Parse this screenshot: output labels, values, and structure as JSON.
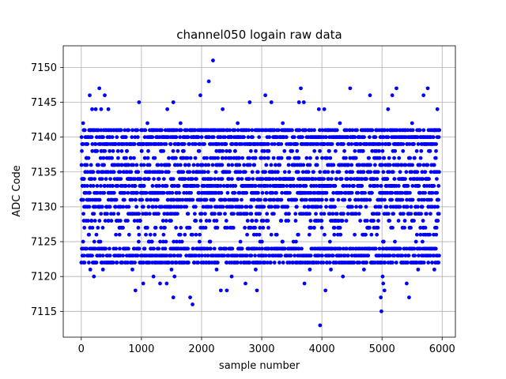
{
  "chart_data": {
    "type": "scatter",
    "title": "channel050 logain raw data",
    "xlabel": "sample number",
    "ylabel": "ADC Code",
    "xlim": [
      -300,
      6220
    ],
    "ylim": [
      7111.3,
      7153.1
    ],
    "xticks": [
      0,
      1000,
      2000,
      3000,
      4000,
      5000,
      6000
    ],
    "yticks": [
      7115,
      7120,
      7125,
      7130,
      7135,
      7140,
      7145,
      7150
    ],
    "grid": true,
    "marker_color": "#0000ff",
    "n_samples": 5950,
    "band": {
      "min": 7122,
      "max": 7141
    },
    "outliers": [
      {
        "x": 2190,
        "y": 7151
      },
      {
        "x": 2120,
        "y": 7148
      },
      {
        "x": 300,
        "y": 7147
      },
      {
        "x": 3650,
        "y": 7147
      },
      {
        "x": 4470,
        "y": 7147
      },
      {
        "x": 5240,
        "y": 7147
      },
      {
        "x": 5760,
        "y": 7147
      },
      {
        "x": 140,
        "y": 7146
      },
      {
        "x": 390,
        "y": 7146
      },
      {
        "x": 1980,
        "y": 7146
      },
      {
        "x": 3060,
        "y": 7146
      },
      {
        "x": 4800,
        "y": 7146
      },
      {
        "x": 5170,
        "y": 7146
      },
      {
        "x": 5690,
        "y": 7146
      },
      {
        "x": 960,
        "y": 7145
      },
      {
        "x": 1530,
        "y": 7145
      },
      {
        "x": 2800,
        "y": 7145
      },
      {
        "x": 3160,
        "y": 7145
      },
      {
        "x": 3620,
        "y": 7145
      },
      {
        "x": 3700,
        "y": 7145
      },
      {
        "x": 180,
        "y": 7144
      },
      {
        "x": 240,
        "y": 7144
      },
      {
        "x": 330,
        "y": 7144
      },
      {
        "x": 450,
        "y": 7144
      },
      {
        "x": 1430,
        "y": 7144
      },
      {
        "x": 2350,
        "y": 7144
      },
      {
        "x": 3950,
        "y": 7144
      },
      {
        "x": 4040,
        "y": 7144
      },
      {
        "x": 5100,
        "y": 7144
      },
      {
        "x": 5920,
        "y": 7144
      },
      {
        "x": 30,
        "y": 7142
      },
      {
        "x": 1100,
        "y": 7142
      },
      {
        "x": 1650,
        "y": 7142
      },
      {
        "x": 2600,
        "y": 7142
      },
      {
        "x": 3350,
        "y": 7142
      },
      {
        "x": 4300,
        "y": 7142
      },
      {
        "x": 5500,
        "y": 7142
      },
      {
        "x": 150,
        "y": 7121
      },
      {
        "x": 360,
        "y": 7121
      },
      {
        "x": 850,
        "y": 7121
      },
      {
        "x": 1500,
        "y": 7121
      },
      {
        "x": 2250,
        "y": 7121
      },
      {
        "x": 2900,
        "y": 7121
      },
      {
        "x": 3800,
        "y": 7121
      },
      {
        "x": 4150,
        "y": 7121
      },
      {
        "x": 4700,
        "y": 7121
      },
      {
        "x": 5600,
        "y": 7121
      },
      {
        "x": 5870,
        "y": 7121
      },
      {
        "x": 210,
        "y": 7120
      },
      {
        "x": 1200,
        "y": 7120
      },
      {
        "x": 1550,
        "y": 7120
      },
      {
        "x": 2500,
        "y": 7120
      },
      {
        "x": 4350,
        "y": 7120
      },
      {
        "x": 5010,
        "y": 7120
      },
      {
        "x": 1030,
        "y": 7119
      },
      {
        "x": 1310,
        "y": 7119
      },
      {
        "x": 1420,
        "y": 7119
      },
      {
        "x": 2730,
        "y": 7119
      },
      {
        "x": 3710,
        "y": 7119
      },
      {
        "x": 5020,
        "y": 7119
      },
      {
        "x": 5410,
        "y": 7119
      },
      {
        "x": 900,
        "y": 7118
      },
      {
        "x": 2320,
        "y": 7118
      },
      {
        "x": 2420,
        "y": 7118
      },
      {
        "x": 2920,
        "y": 7118
      },
      {
        "x": 4060,
        "y": 7118
      },
      {
        "x": 5040,
        "y": 7118
      },
      {
        "x": 1530,
        "y": 7117
      },
      {
        "x": 1810,
        "y": 7117
      },
      {
        "x": 4980,
        "y": 7117
      },
      {
        "x": 5450,
        "y": 7117
      },
      {
        "x": 1850,
        "y": 7116
      },
      {
        "x": 4990,
        "y": 7115
      },
      {
        "x": 3970,
        "y": 7113
      }
    ]
  }
}
